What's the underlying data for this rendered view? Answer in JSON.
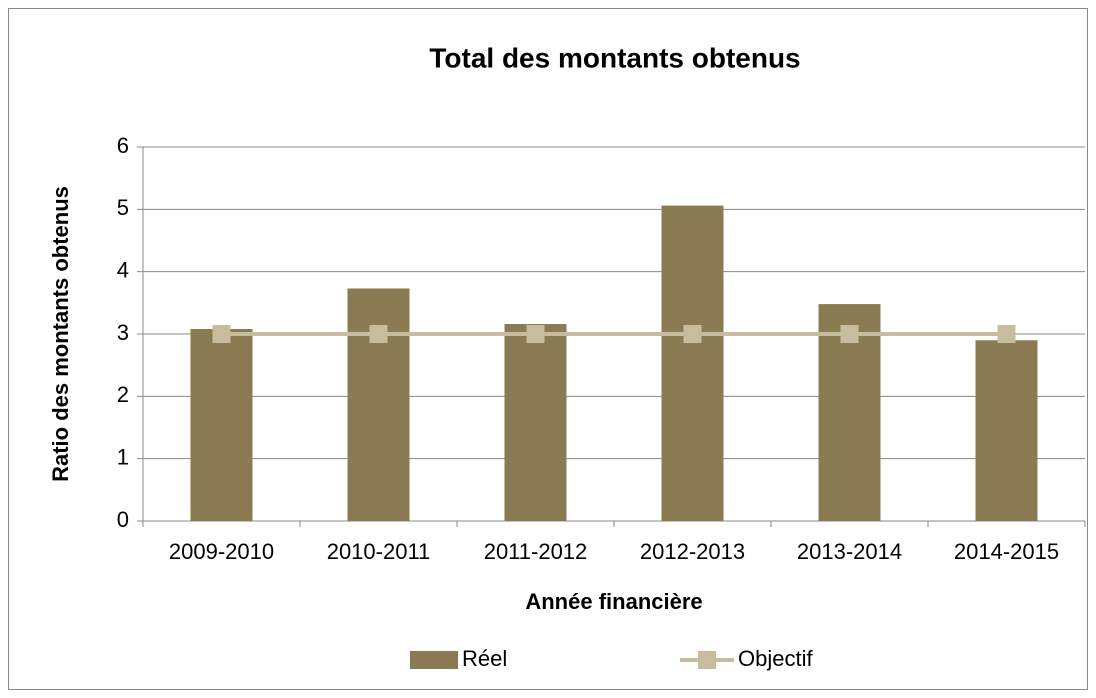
{
  "chart_data": {
    "type": "bar",
    "title": "Total des montants obtenus",
    "x_label": "Année financière",
    "y_label": "Ratio des montants obtenus",
    "categories": [
      "2009-2010",
      "2010-2011",
      "2011-2012",
      "2012-2013",
      "2013-2014",
      "2014-2015"
    ],
    "series": [
      {
        "name": "Réel",
        "type": "bar",
        "color": "#8b7b52",
        "values": [
          3.08,
          3.73,
          3.16,
          5.06,
          3.48,
          2.9
        ]
      },
      {
        "name": "Objectif",
        "type": "line",
        "color": "#c8bc9e",
        "values": [
          3,
          3,
          3,
          3,
          3,
          3
        ]
      }
    ],
    "ylim": [
      0,
      6
    ],
    "yticks": [
      0,
      1,
      2,
      3,
      4,
      5,
      6
    ],
    "grid": true,
    "legend": "bottom"
  }
}
